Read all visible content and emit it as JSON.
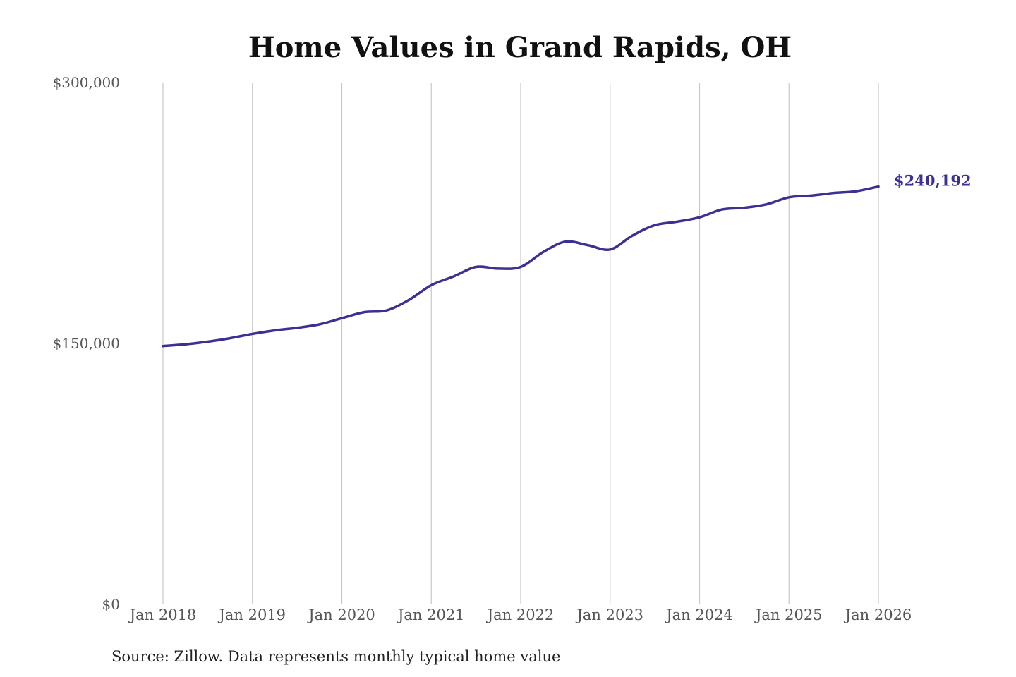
{
  "chart_data": {
    "type": "line",
    "title": "Home Values in Grand Rapids, OH",
    "xlabel": "",
    "ylabel": "",
    "ylim": [
      0,
      300000
    ],
    "y_ticks": [
      {
        "value": 0,
        "label": "$0"
      },
      {
        "value": 150000,
        "label": "$150,000"
      },
      {
        "value": 300000,
        "label": "$300,000"
      }
    ],
    "x_ticks": [
      "Jan 2018",
      "Jan 2019",
      "Jan 2020",
      "Jan 2021",
      "Jan 2022",
      "Jan 2023",
      "Jan 2024",
      "Jan 2025",
      "Jan 2026"
    ],
    "grid": "vertical",
    "line_color": "#3b3192",
    "x": [
      "2018-01",
      "2018-04",
      "2018-07",
      "2018-10",
      "2019-01",
      "2019-04",
      "2019-07",
      "2019-10",
      "2020-01",
      "2020-04",
      "2020-07",
      "2020-10",
      "2021-01",
      "2021-04",
      "2021-07",
      "2021-10",
      "2022-01",
      "2022-04",
      "2022-07",
      "2022-10",
      "2023-01",
      "2023-04",
      "2023-07",
      "2023-10",
      "2024-01",
      "2024-04",
      "2024-07",
      "2024-10",
      "2025-01",
      "2025-04",
      "2025-07",
      "2025-10",
      "2026-01"
    ],
    "values": [
      148500,
      149500,
      151000,
      153000,
      155500,
      157500,
      159000,
      161000,
      164500,
      168000,
      169000,
      175000,
      183500,
      188500,
      194000,
      193000,
      194000,
      202500,
      208500,
      206500,
      204000,
      212000,
      218000,
      220000,
      222500,
      227000,
      228000,
      230000,
      234000,
      235000,
      236500,
      237500,
      240192
    ],
    "end_label": "$240,192",
    "source": "Source: Zillow. Data represents monthly typical home value"
  }
}
